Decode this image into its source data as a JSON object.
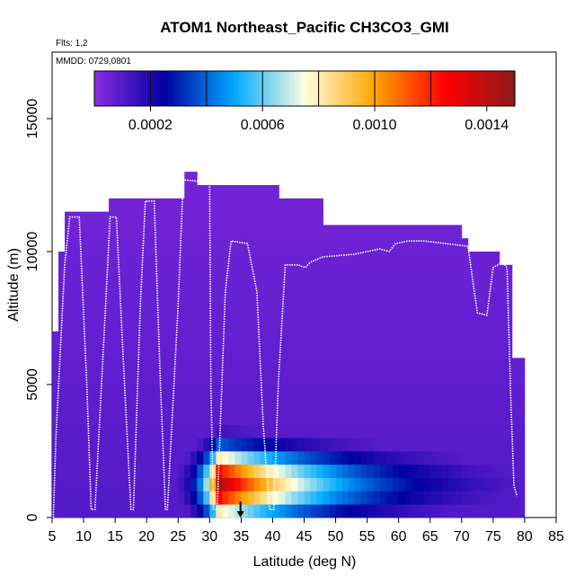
{
  "chart_data": {
    "type": "heatmap",
    "title": "ATOM1 Northeast_Pacific CH3CO3_GMI",
    "flights_label": "Flts: 1,2",
    "date_label": "MMDD: 0729,0801",
    "xlabel": "Latitude (deg N)",
    "ylabel": "Altitude (m)",
    "xlim": [
      5,
      85
    ],
    "ylim": [
      0,
      17500
    ],
    "x_ticks": [
      5,
      10,
      15,
      20,
      25,
      30,
      35,
      40,
      45,
      50,
      55,
      60,
      65,
      70,
      75,
      80,
      85
    ],
    "y_ticks": [
      0,
      5000,
      10000,
      15000
    ],
    "colorbar": {
      "range": [
        0.0,
        0.0015
      ],
      "tick_values": [
        0.0002,
        0.0006,
        0.001,
        0.0014
      ],
      "tick_labels": [
        "0.0002",
        "0.0006",
        "0.0010",
        "0.0014"
      ],
      "colors": [
        "#8a2be2",
        "#0000a0",
        "#00aaff",
        "#ffffe0",
        "#ffa500",
        "#ff0000",
        "#8b1a1a"
      ]
    },
    "field": {
      "description": "gridded curtain of CH3CO3 mixing ratio along flight track",
      "lat_step": 1,
      "alt_step": 500,
      "domain_top": [
        [
          5,
          7000
        ],
        [
          6,
          10000
        ],
        [
          7,
          11500
        ],
        [
          12,
          11500
        ],
        [
          14,
          12000
        ],
        [
          26,
          13000
        ],
        [
          28,
          12500
        ],
        [
          41,
          12000
        ],
        [
          48,
          11000
        ],
        [
          67,
          11000
        ],
        [
          70,
          10500
        ],
        [
          71,
          10000
        ],
        [
          76,
          9500
        ],
        [
          78,
          6000
        ],
        [
          80,
          6000
        ]
      ],
      "domain_lat_range": [
        5,
        80
      ],
      "background_low": 0.0001,
      "background_high": 4e-05,
      "plume_peak": {
        "lat": 31,
        "alt": 1000,
        "value": 0.00145
      },
      "plume_lat_extent": [
        25,
        78
      ],
      "plume_alt_extent": [
        0,
        4000
      ]
    },
    "flight_track": {
      "description": "flight track altitudes (m) vs latitude",
      "points": [
        [
          5.2,
          0
        ],
        [
          5.6,
          3000
        ],
        [
          7.0,
          9500
        ],
        [
          7.8,
          11300
        ],
        [
          9.3,
          11300
        ],
        [
          10.5,
          5000
        ],
        [
          11.2,
          300
        ],
        [
          11.8,
          300
        ],
        [
          13.5,
          8000
        ],
        [
          14.2,
          11300
        ],
        [
          15.2,
          11300
        ],
        [
          16.5,
          5000
        ],
        [
          17.5,
          300
        ],
        [
          17.9,
          300
        ],
        [
          19.0,
          8000
        ],
        [
          19.8,
          11900
        ],
        [
          21.2,
          11900
        ],
        [
          22.2,
          5000
        ],
        [
          23.0,
          300
        ],
        [
          23.3,
          300
        ],
        [
          25.0,
          8000
        ],
        [
          25.8,
          12700
        ],
        [
          30.0,
          12600
        ],
        [
          30.2,
          5000
        ],
        [
          30.6,
          300
        ],
        [
          31.2,
          300
        ],
        [
          32.5,
          8500
        ],
        [
          33.4,
          10400
        ],
        [
          36.0,
          10300
        ],
        [
          37.5,
          8500
        ],
        [
          38.5,
          3500
        ],
        [
          39.5,
          300
        ],
        [
          40.2,
          300
        ],
        [
          40.9,
          5000
        ],
        [
          42.0,
          9500
        ],
        [
          44.0,
          9500
        ],
        [
          45.2,
          9400
        ],
        [
          46.0,
          9600
        ],
        [
          48.0,
          9800
        ],
        [
          53.0,
          9900
        ],
        [
          55.0,
          10000
        ],
        [
          57.0,
          10100
        ],
        [
          58.5,
          10000
        ],
        [
          59.5,
          10300
        ],
        [
          61.5,
          10400
        ],
        [
          64.0,
          10400
        ],
        [
          67.5,
          10300
        ],
        [
          71.0,
          10200
        ],
        [
          72.5,
          7700
        ],
        [
          74.0,
          7600
        ],
        [
          75.0,
          9400
        ],
        [
          76.5,
          9600
        ],
        [
          77.2,
          9400
        ],
        [
          77.8,
          4500
        ],
        [
          78.3,
          1200
        ],
        [
          78.8,
          800
        ]
      ]
    },
    "marker": {
      "lat": 34.9,
      "alt_from": 600,
      "alt_to": 0,
      "label": "profile location arrow"
    }
  }
}
